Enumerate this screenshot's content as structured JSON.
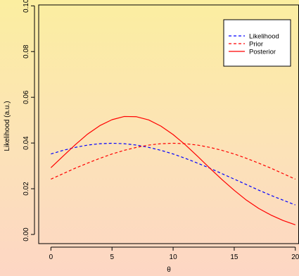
{
  "chart_data": {
    "type": "line",
    "xlabel": "θ",
    "ylabel": "Likelihood (a.u.)",
    "xlim": [
      -1,
      20.3
    ],
    "ylim": [
      -0.004,
      0.1004
    ],
    "x_ticks": [
      0,
      5,
      10,
      15,
      20
    ],
    "x_tick_labels": [
      "0",
      "5",
      "10",
      "15",
      "20"
    ],
    "y_ticks": [
      0.0,
      0.02,
      0.04,
      0.06,
      0.08,
      0.1
    ],
    "y_tick_labels": [
      "0.00",
      "0.02",
      "0.04",
      "0.06",
      "0.08",
      "0.10"
    ],
    "grid": false,
    "legend_position": "top-right",
    "x": [
      0,
      1,
      2,
      3,
      4,
      5,
      6,
      7,
      8,
      9,
      10,
      11,
      12,
      13,
      14,
      15,
      16,
      17,
      18,
      19,
      20
    ],
    "series": [
      {
        "name": "Likelihood",
        "color": "#0000ff",
        "dash": "dashed",
        "values": [
          0.0352,
          0.0368,
          0.0381,
          0.0391,
          0.0397,
          0.0399,
          0.0397,
          0.0391,
          0.0381,
          0.0368,
          0.0352,
          0.0333,
          0.0312,
          0.029,
          0.0266,
          0.0242,
          0.0218,
          0.0194,
          0.0171,
          0.015,
          0.0129
        ]
      },
      {
        "name": "Prior",
        "color": "#ff0000",
        "dash": "dashed",
        "values": [
          0.0242,
          0.0266,
          0.029,
          0.0312,
          0.0333,
          0.0352,
          0.0368,
          0.0381,
          0.0391,
          0.0397,
          0.0399,
          0.0397,
          0.0391,
          0.0381,
          0.0368,
          0.0352,
          0.0333,
          0.0312,
          0.029,
          0.0266,
          0.0242
        ]
      },
      {
        "name": "Posterior",
        "color": "#ff0000",
        "dash": "solid",
        "values": [
          0.0292,
          0.0343,
          0.0393,
          0.0439,
          0.0476,
          0.0502,
          0.0516,
          0.0515,
          0.0501,
          0.0474,
          0.0437,
          0.0392,
          0.0342,
          0.029,
          0.024,
          0.0193,
          0.015,
          0.0114,
          0.0085,
          0.0061,
          0.0042
        ]
      }
    ]
  }
}
